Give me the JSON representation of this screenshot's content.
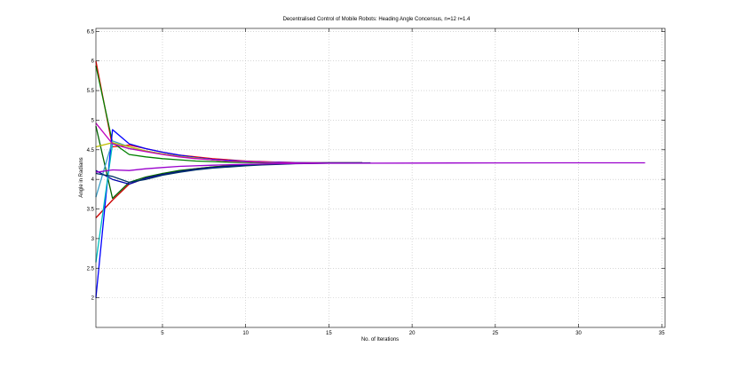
{
  "chart_data": {
    "type": "line",
    "title": "Decentralised Control of Mobile Robots: Heading Angle Concensus, n=12 r=1.4",
    "xlabel": "No. of Iterations",
    "ylabel": "Angle in Radians",
    "xlim": [
      1,
      35.2
    ],
    "ylim": [
      1.5,
      6.55
    ],
    "xticks": [
      5,
      10,
      15,
      20,
      25,
      30,
      35
    ],
    "yticks": [
      2,
      2.5,
      3,
      3.5,
      4,
      4.5,
      5,
      5.5,
      6,
      6.5
    ],
    "grid": true,
    "series": [
      {
        "color": "#ff0000",
        "x": [
          1,
          2,
          3,
          4,
          5,
          6,
          7,
          8,
          9,
          10,
          11,
          12,
          13,
          14,
          15,
          17
        ],
        "y": [
          6.0,
          4.55,
          4.58,
          4.52,
          4.46,
          4.41,
          4.38,
          4.35,
          4.33,
          4.31,
          4.3,
          4.29,
          4.285,
          4.28,
          4.28,
          4.28
        ]
      },
      {
        "color": "#cc0000",
        "x": [
          1,
          2,
          3,
          4,
          5,
          6,
          7,
          8,
          9,
          10,
          11,
          12,
          13,
          14,
          15,
          17
        ],
        "y": [
          3.35,
          3.65,
          3.92,
          4.02,
          4.09,
          4.14,
          4.18,
          4.21,
          4.23,
          4.245,
          4.255,
          4.265,
          4.27,
          4.275,
          4.28,
          4.28
        ]
      },
      {
        "color": "#008000",
        "x": [
          1,
          2,
          3,
          4,
          5,
          6,
          7,
          8,
          9,
          10,
          11,
          12,
          13,
          14,
          15,
          17
        ],
        "y": [
          5.92,
          4.62,
          4.42,
          4.38,
          4.35,
          4.33,
          4.31,
          4.3,
          4.29,
          4.285,
          4.28,
          4.28,
          4.28,
          4.28,
          4.28,
          4.28
        ]
      },
      {
        "color": "#006400",
        "x": [
          1,
          2,
          3,
          4,
          5,
          6,
          7,
          8,
          9,
          10,
          11,
          12,
          13,
          14,
          15,
          17
        ],
        "y": [
          4.9,
          3.68,
          3.95,
          4.04,
          4.1,
          4.15,
          4.18,
          4.21,
          4.23,
          4.245,
          4.255,
          4.265,
          4.27,
          4.275,
          4.28,
          4.28
        ]
      },
      {
        "color": "#0000ff",
        "x": [
          1,
          2,
          3,
          4,
          5,
          6,
          7,
          8,
          9,
          10,
          11,
          12,
          13,
          14,
          15,
          17
        ],
        "y": [
          2.0,
          4.84,
          4.6,
          4.52,
          4.46,
          4.41,
          4.37,
          4.34,
          4.32,
          4.305,
          4.295,
          4.29,
          4.285,
          4.28,
          4.28,
          4.28
        ]
      },
      {
        "color": "#0000aa",
        "x": [
          1,
          2,
          3,
          4,
          5,
          6,
          7,
          8,
          9,
          10,
          11,
          12,
          13,
          14,
          15,
          17
        ],
        "y": [
          4.15,
          4.0,
          3.92,
          4.02,
          4.08,
          4.13,
          4.17,
          4.2,
          4.22,
          4.24,
          4.25,
          4.26,
          4.27,
          4.275,
          4.28,
          4.28
        ]
      },
      {
        "color": "#00bfbf",
        "x": [
          1,
          2,
          3,
          4,
          5,
          6,
          7,
          8,
          9,
          10,
          11,
          12,
          13,
          14,
          15,
          17
        ],
        "y": [
          2.6,
          4.6,
          4.52,
          4.48,
          4.43,
          4.39,
          4.36,
          4.33,
          4.31,
          4.3,
          4.29,
          4.285,
          4.28,
          4.28,
          4.28,
          4.28
        ]
      },
      {
        "color": "#3aa0c8",
        "x": [
          1,
          2,
          3,
          4,
          5,
          6,
          7,
          8,
          9,
          10,
          11,
          12,
          13,
          14,
          15,
          17
        ],
        "y": [
          3.7,
          4.65,
          4.55,
          4.48,
          4.43,
          4.39,
          4.36,
          4.33,
          4.31,
          4.3,
          4.29,
          4.285,
          4.28,
          4.28,
          4.28,
          4.28
        ]
      },
      {
        "color": "#bfbf00",
        "x": [
          1,
          2,
          3,
          4,
          5,
          6,
          7,
          8,
          9,
          10,
          11,
          12,
          13,
          14,
          15,
          17
        ],
        "y": [
          4.55,
          4.62,
          4.55,
          4.48,
          4.43,
          4.39,
          4.36,
          4.33,
          4.31,
          4.3,
          4.29,
          4.285,
          4.28,
          4.28,
          4.28,
          4.28
        ]
      },
      {
        "color": "#bf00bf",
        "x": [
          1,
          2,
          3,
          4,
          5,
          6,
          7,
          8,
          9,
          10,
          11,
          12,
          13,
          14,
          15,
          17
        ],
        "y": [
          4.95,
          4.6,
          4.52,
          4.47,
          4.42,
          4.38,
          4.35,
          4.33,
          4.31,
          4.3,
          4.29,
          4.285,
          4.28,
          4.28,
          4.28,
          4.28
        ]
      },
      {
        "color": "#003366",
        "x": [
          1,
          2,
          3,
          4,
          5,
          6,
          7,
          8,
          9,
          10,
          11,
          12,
          13,
          14,
          15,
          17.5
        ],
        "y": [
          4.1,
          4.05,
          3.95,
          4.0,
          4.07,
          4.12,
          4.16,
          4.19,
          4.21,
          4.23,
          4.245,
          4.255,
          4.265,
          4.27,
          4.275,
          4.28
        ]
      },
      {
        "color": "#9900cc",
        "x": [
          1,
          2,
          3,
          4,
          5,
          6,
          8,
          10,
          12,
          15,
          20,
          25,
          30,
          34
        ],
        "y": [
          4.12,
          4.16,
          4.15,
          4.18,
          4.2,
          4.22,
          4.24,
          4.255,
          4.265,
          4.272,
          4.276,
          4.278,
          4.28,
          4.28
        ]
      }
    ]
  }
}
